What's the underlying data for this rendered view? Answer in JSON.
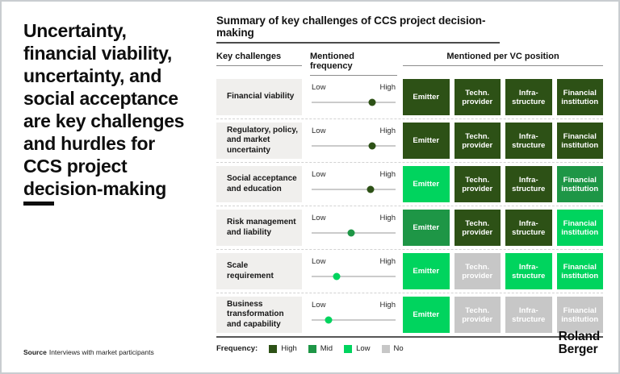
{
  "left_panel": {
    "title": "Uncertainty,\nfinancial viability,\nuncertainty, and\nsocial acceptance\nare key challenges\nand hurdles for\nCCS project\ndecision-making"
  },
  "footer": {
    "source_label": "Source",
    "source_text": "Interviews with market participants",
    "logo": "Roland\nBerger"
  },
  "chart_data": {
    "type": "table",
    "title": "Summary of key challenges of CCS project decision-making",
    "column_headers": [
      "Key challenges",
      "Mentioned frequency",
      "Mentioned per VC position"
    ],
    "vc_positions": [
      "Emitter",
      "Techn.\nprovider",
      "Infra-\nstructure",
      "Financial\ninstitution"
    ],
    "frequency_scale": {
      "low": "Low",
      "high": "High"
    },
    "legend_title": "Frequency:",
    "legend": [
      {
        "label": "High",
        "color": "#2D5116"
      },
      {
        "label": "Mid",
        "color": "#1E9646"
      },
      {
        "label": "Low",
        "color": "#00D45E"
      },
      {
        "label": "No",
        "color": "#C7C7C7"
      }
    ],
    "rows": [
      {
        "label": "Financial viability",
        "frequency": 0.72,
        "frequency_level": "High",
        "cells": [
          "High",
          "High",
          "High",
          "High"
        ]
      },
      {
        "label": "Regulatory, policy,\nand market\nuncertainty",
        "frequency": 0.72,
        "frequency_level": "High",
        "cells": [
          "High",
          "High",
          "High",
          "High"
        ]
      },
      {
        "label": "Social acceptance\nand education",
        "frequency": 0.7,
        "frequency_level": "High",
        "cells": [
          "Low",
          "High",
          "High",
          "Mid"
        ]
      },
      {
        "label": "Risk management\nand liability",
        "frequency": 0.47,
        "frequency_level": "Mid",
        "cells": [
          "Mid",
          "High",
          "High",
          "Low"
        ]
      },
      {
        "label": "Scale\nrequirement",
        "frequency": 0.3,
        "frequency_level": "Low",
        "cells": [
          "Low",
          "No",
          "Low",
          "Low"
        ]
      },
      {
        "label": "Business\ntransformation\nand capability",
        "frequency": 0.2,
        "frequency_level": "Low",
        "cells": [
          "Low",
          "No",
          "No",
          "No"
        ]
      }
    ]
  }
}
